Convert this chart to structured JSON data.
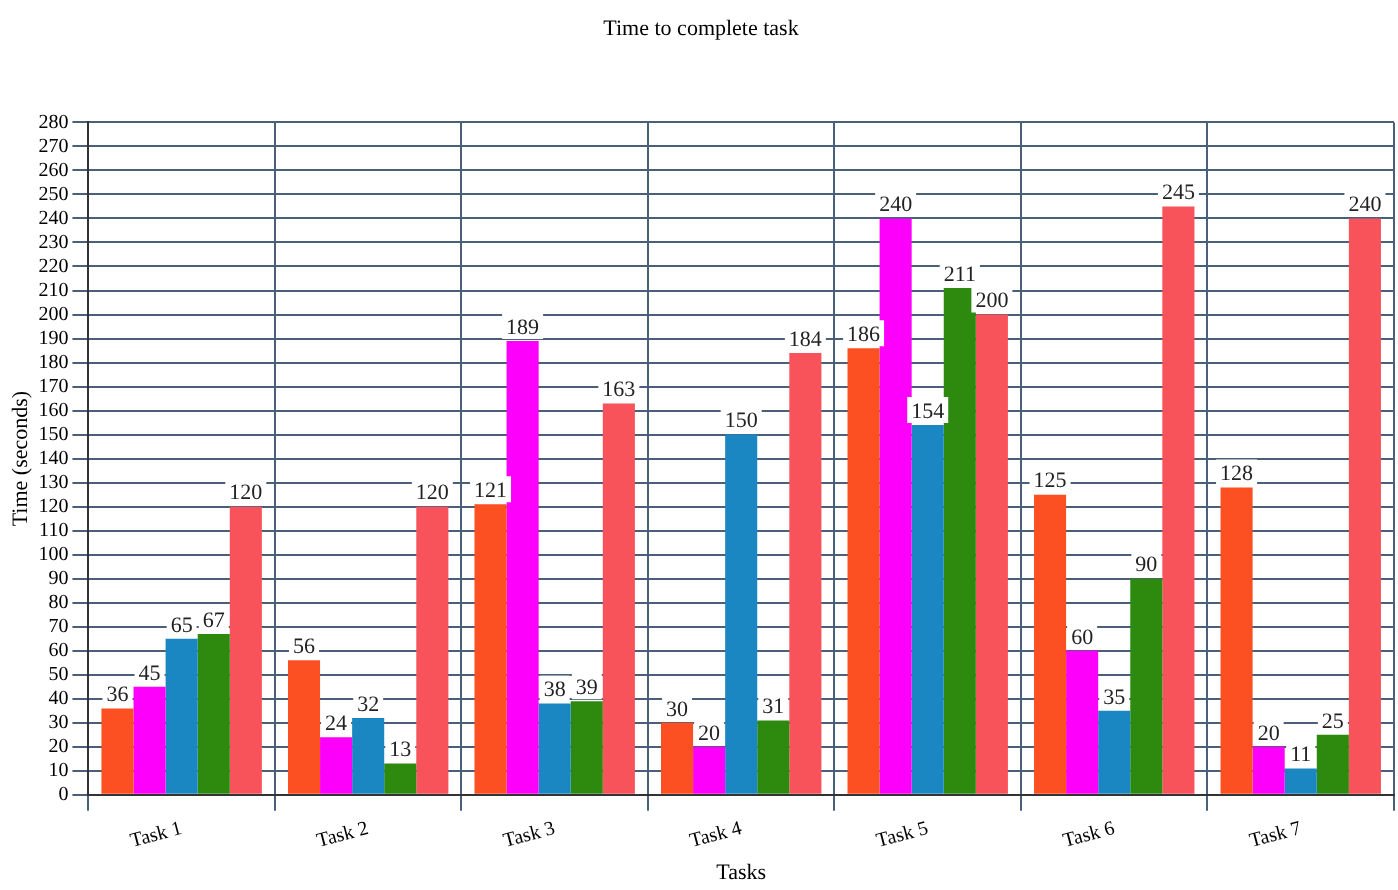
{
  "chart_data": {
    "type": "bar",
    "title": "Time to complete task",
    "xlabel": "Tasks",
    "ylabel": "Time (seconds)",
    "categories": [
      "Task 1",
      "Task 2",
      "Task 3",
      "Task 4",
      "Task 5",
      "Task 6",
      "Task 7"
    ],
    "series": [
      {
        "color": "#fc4f22",
        "values": [
          36,
          56,
          121,
          30,
          186,
          125,
          128
        ]
      },
      {
        "color": "#fc00fc",
        "values": [
          45,
          24,
          189,
          20,
          240,
          60,
          20
        ]
      },
      {
        "color": "#1a87c3",
        "values": [
          65,
          32,
          38,
          150,
          154,
          35,
          11
        ]
      },
      {
        "color": "#2d8a0f",
        "values": [
          67,
          13,
          39,
          31,
          211,
          90,
          25
        ]
      },
      {
        "color": "#f8525a",
        "values": [
          120,
          120,
          163,
          184,
          200,
          245,
          240
        ]
      }
    ],
    "ylim": [
      0,
      280
    ],
    "yticks": [
      0,
      10,
      20,
      30,
      40,
      50,
      60,
      70,
      80,
      90,
      100,
      110,
      120,
      130,
      140,
      150,
      160,
      170,
      180,
      190,
      200,
      210,
      220,
      230,
      240,
      250,
      260,
      270,
      280
    ],
    "grid": true,
    "legend": false,
    "data_labels": true
  }
}
